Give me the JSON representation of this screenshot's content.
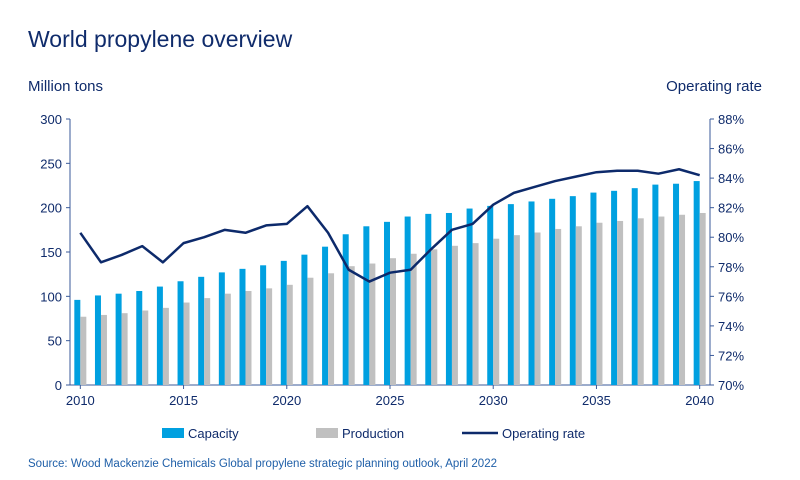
{
  "chart_data": {
    "type": "bar+line",
    "title": "World propylene overview",
    "ylabel": "Million tons",
    "y2label": "Operating rate",
    "source": "Source: Wood Mackenzie Chemicals Global propylene strategic planning outlook, April 2022",
    "ylim": [
      0,
      300
    ],
    "yticks": [
      "0",
      "50",
      "100",
      "150",
      "200",
      "250",
      "300"
    ],
    "y2lim": [
      70,
      88
    ],
    "y2ticks": [
      "70%",
      "72%",
      "74%",
      "76%",
      "78%",
      "80%",
      "82%",
      "84%",
      "86%",
      "88%"
    ],
    "xticks": [
      "2010",
      "2015",
      "2020",
      "2025",
      "2030",
      "2035",
      "2040"
    ],
    "legend_position": "bottom",
    "grid": false,
    "x": [
      2010,
      2011,
      2012,
      2013,
      2014,
      2015,
      2016,
      2017,
      2018,
      2019,
      2020,
      2021,
      2022,
      2023,
      2024,
      2025,
      2026,
      2027,
      2028,
      2029,
      2030,
      2031,
      2032,
      2033,
      2034,
      2035,
      2036,
      2037,
      2038,
      2039,
      2040
    ],
    "series": [
      {
        "name": "Capacity",
        "kind": "bar",
        "axis": "left",
        "color": "#00a0e0",
        "values": [
          96,
          101,
          103,
          106,
          111,
          117,
          122,
          127,
          131,
          135,
          140,
          147,
          156,
          170,
          179,
          184,
          190,
          193,
          194,
          199,
          202,
          204,
          207,
          210,
          213,
          217,
          219,
          222,
          226,
          227,
          230
        ]
      },
      {
        "name": "Production",
        "kind": "bar",
        "axis": "left",
        "color": "#c0c0c0",
        "values": [
          77,
          79,
          81,
          84,
          87,
          93,
          98,
          103,
          106,
          109,
          113,
          121,
          126,
          134,
          137,
          143,
          148,
          153,
          157,
          160,
          165,
          169,
          172,
          176,
          179,
          183,
          185,
          188,
          190,
          192,
          194
        ]
      },
      {
        "name": "Operating rate",
        "kind": "line",
        "axis": "right",
        "color": "#0d2a6b",
        "values": [
          80.3,
          78.3,
          78.8,
          79.4,
          78.3,
          79.6,
          80.0,
          80.5,
          80.3,
          80.8,
          80.9,
          82.1,
          80.3,
          77.8,
          77.0,
          77.6,
          77.8,
          79.2,
          80.5,
          80.9,
          82.2,
          83.0,
          83.4,
          83.8,
          84.1,
          84.4,
          84.5,
          84.5,
          84.3,
          84.6,
          84.2
        ]
      }
    ]
  }
}
